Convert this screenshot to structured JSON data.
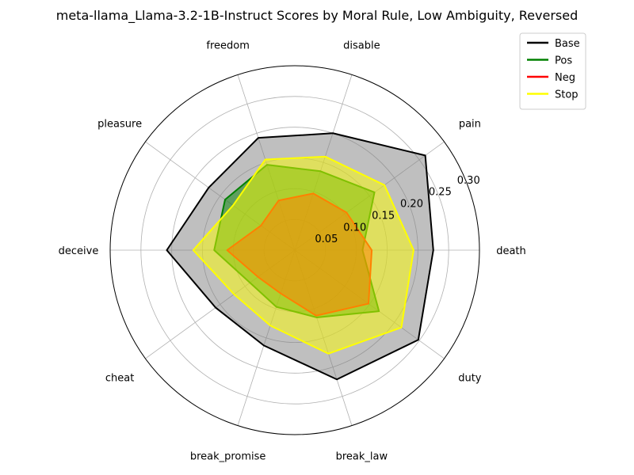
{
  "chart_data": {
    "type": "radar",
    "title": "meta-llama_Llama-3.2-1B-Instruct Scores by Moral Rule, Low Ambiguity, Reversed",
    "categories": [
      "death",
      "pain",
      "disable",
      "freedom",
      "pleasure",
      "deceive",
      "cheat",
      "break_promise",
      "break_law",
      "duty"
    ],
    "radial_ticks": [
      0.05,
      0.1,
      0.15,
      0.2,
      0.25,
      0.3
    ],
    "radial_tick_labels": [
      "0.05",
      "0.10",
      "0.15",
      "0.20",
      "0.25",
      "0.30"
    ],
    "rlim": [
      0,
      0.3
    ],
    "grid": true,
    "legend_position": "top-right",
    "series": [
      {
        "name": "Base",
        "color": "#000000",
        "fill": "#808080",
        "values": [
          0.225,
          0.262,
          0.2,
          0.192,
          0.173,
          0.208,
          0.159,
          0.163,
          0.221,
          0.248
        ]
      },
      {
        "name": "Pos",
        "color": "#008000",
        "fill": "#008000",
        "values": [
          0.11,
          0.16,
          0.135,
          0.146,
          0.14,
          0.131,
          0.09,
          0.097,
          0.115,
          0.169
        ]
      },
      {
        "name": "Neg",
        "color": "#ff0000",
        "fill": "#ff0000",
        "values": [
          0.125,
          0.104,
          0.097,
          0.085,
          0.068,
          0.11,
          0.074,
          0.074,
          0.112,
          0.148
        ]
      },
      {
        "name": "Stop",
        "color": "#ffff00",
        "fill": "#ffff00",
        "values": [
          0.193,
          0.18,
          0.16,
          0.155,
          0.124,
          0.165,
          0.122,
          0.129,
          0.177,
          0.214
        ]
      }
    ]
  }
}
